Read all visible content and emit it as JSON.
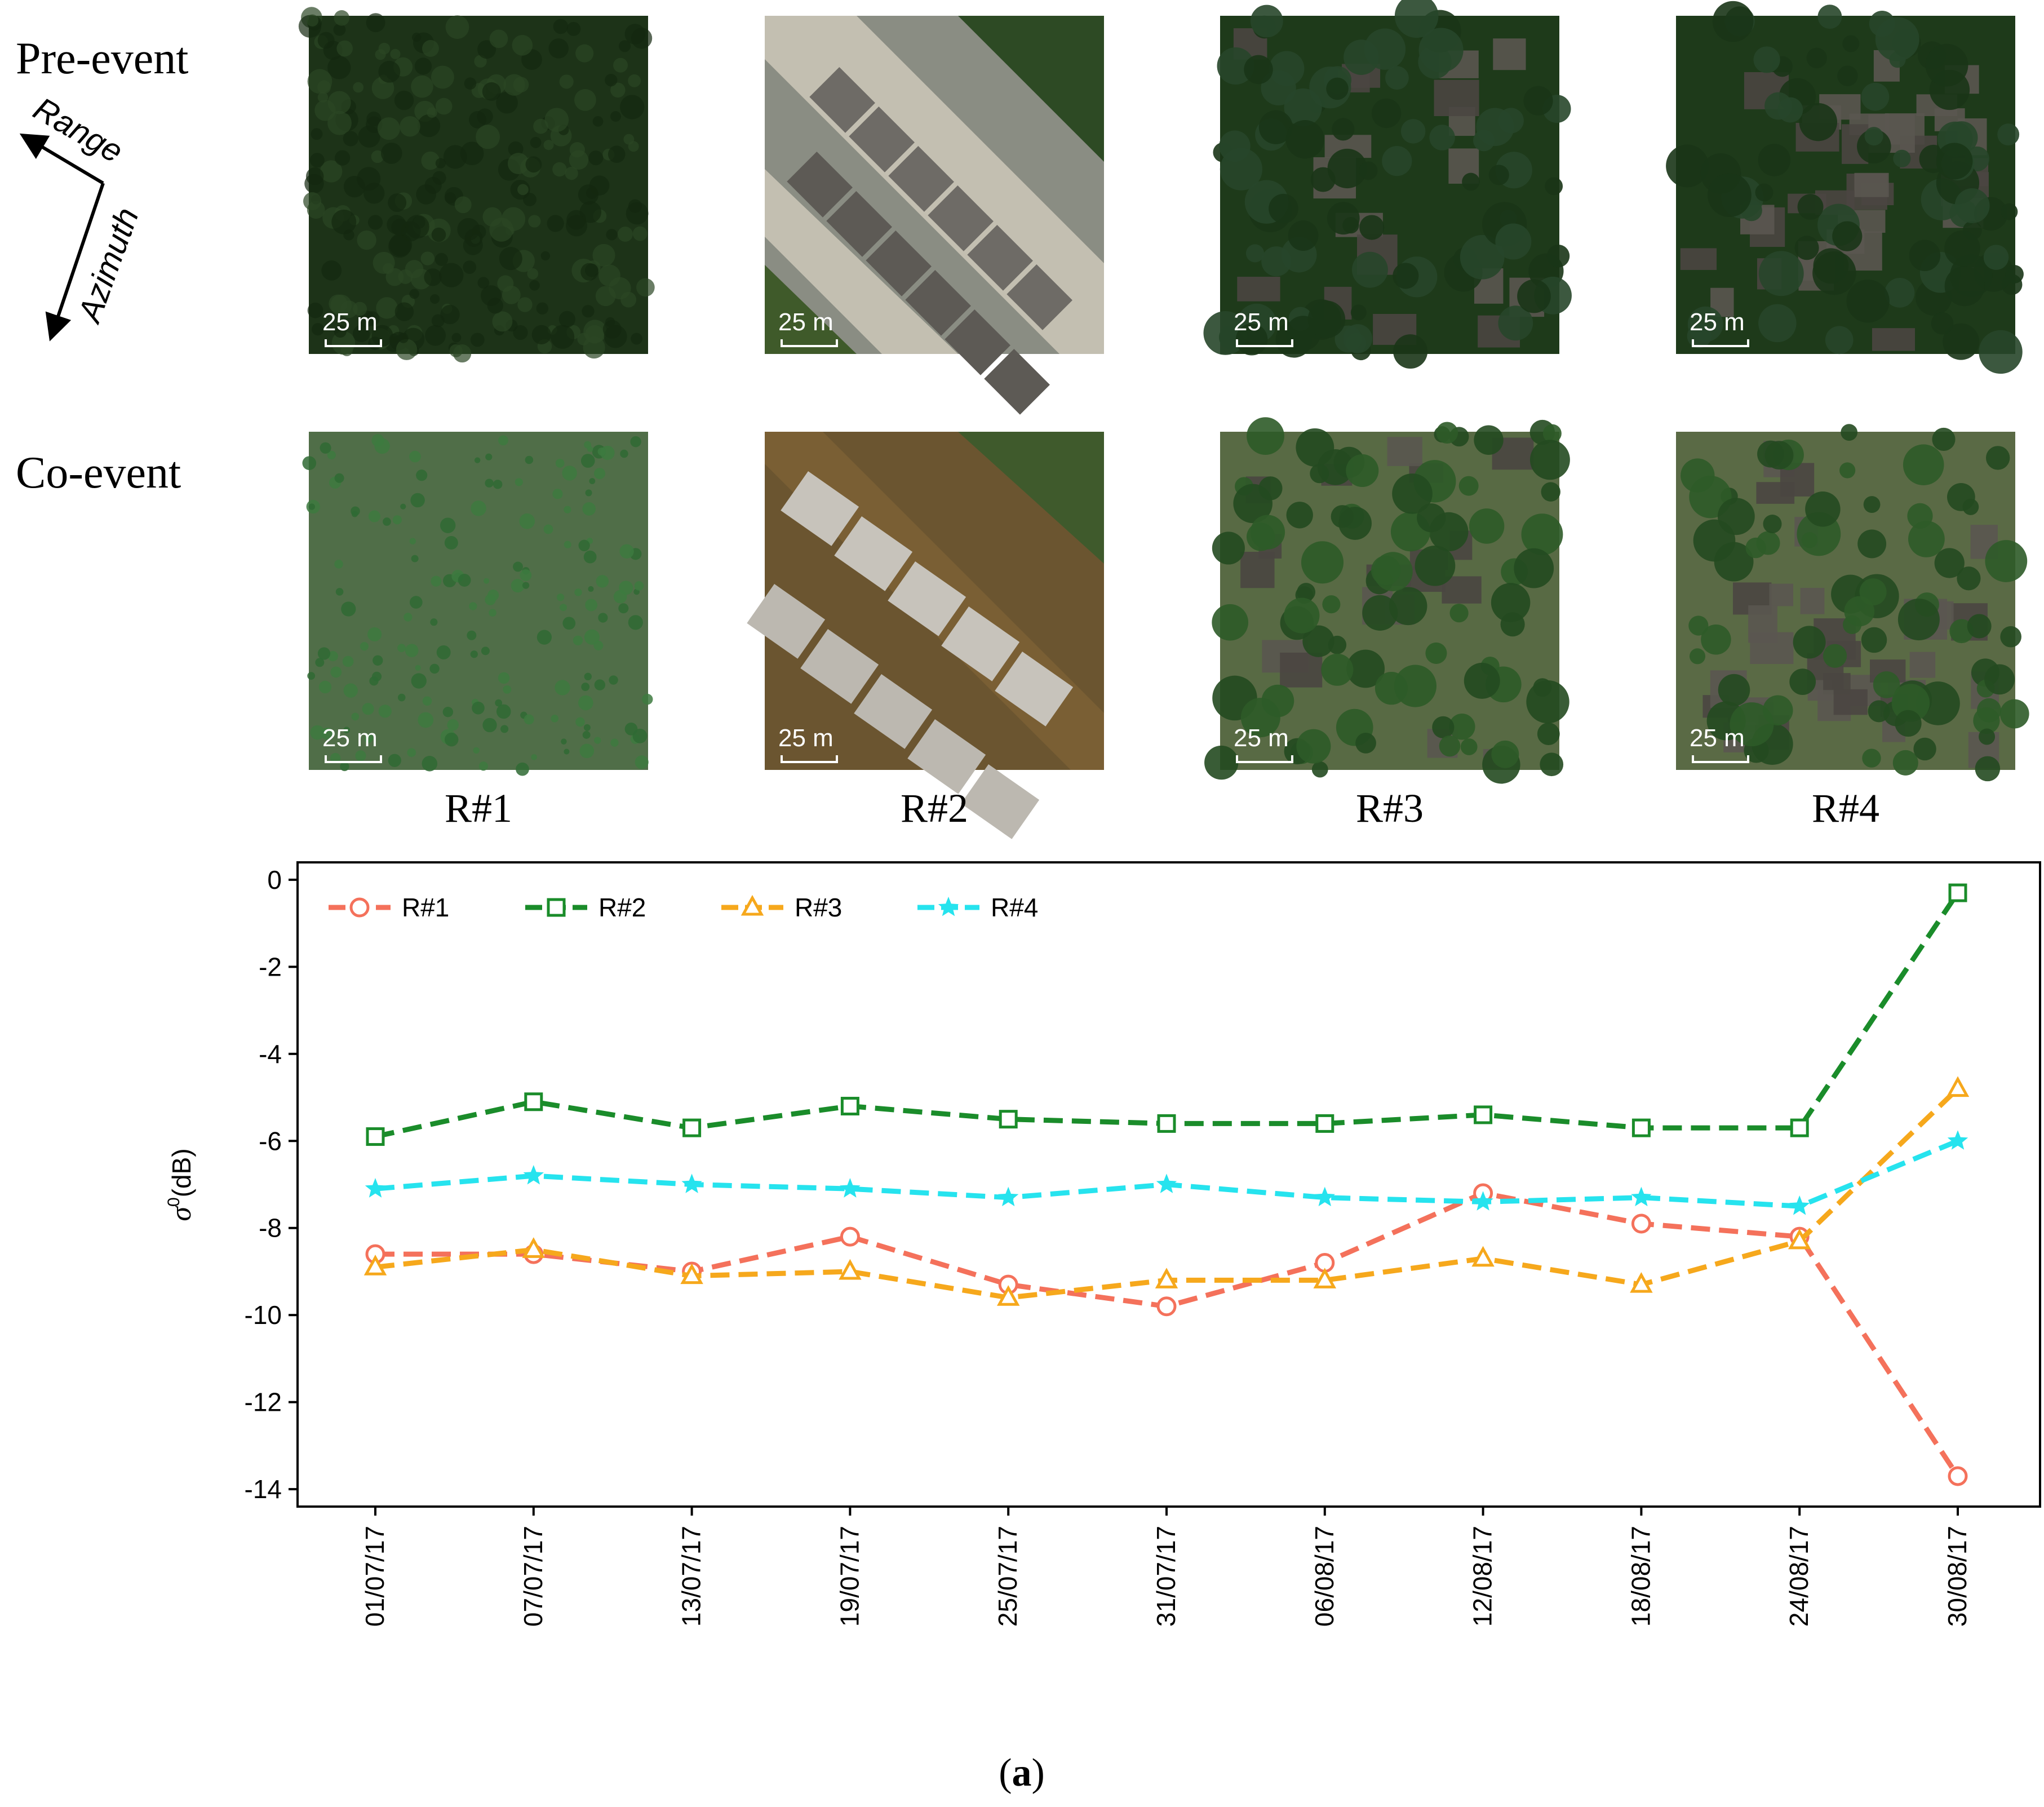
{
  "row_labels": {
    "pre": "Pre-event",
    "co": "Co-event"
  },
  "orientation": {
    "range": "Range",
    "azimuth": "Azimuth"
  },
  "scale_label": "25 m",
  "regions": [
    "R#1",
    "R#2",
    "R#3",
    "R#4"
  ],
  "caption": {
    "open": "(",
    "letter": "a",
    "close": ")"
  },
  "colors": {
    "r1": "#f4715b",
    "r2": "#1a8c2a",
    "r3": "#f6a81c",
    "r4": "#26e3ee",
    "pre_forest": "#1d3318",
    "co_forest": "#506e48",
    "water": "#6b5530",
    "roof": "#6e6b66",
    "concrete": "#c9c4b6",
    "tree": "#1e3a1a",
    "tree_co": "#2e5b28"
  },
  "chart_data": {
    "type": "line",
    "title": "",
    "xlabel": "",
    "ylabel": "σ⁰(dB)",
    "ylabel_main": "σ",
    "ylabel_sup": "0",
    "ylabel_unit": "(dB)",
    "ylim": [
      -14.4,
      0.4
    ],
    "yticks": [
      0,
      -2,
      -4,
      -6,
      -8,
      -10,
      -12,
      -14
    ],
    "ytick_labels": [
      "0",
      "-2",
      "-4",
      "-6",
      "-8",
      "-10",
      "-12",
      "-14"
    ],
    "categories": [
      "01/07/17",
      "07/07/17",
      "13/07/17",
      "19/07/17",
      "25/07/17",
      "31/07/17",
      "06/08/17",
      "12/08/17",
      "18/08/17",
      "24/08/17",
      "30/08/17"
    ],
    "legend_position": "top-left",
    "series": [
      {
        "name": "R#1",
        "marker": "circle",
        "color": "#f4715b",
        "values": [
          -8.6,
          -8.6,
          -9.0,
          -8.2,
          -9.3,
          -9.8,
          -8.8,
          -7.2,
          -7.9,
          -8.2,
          -13.7
        ]
      },
      {
        "name": "R#2",
        "marker": "square",
        "color": "#1a8c2a",
        "values": [
          -5.9,
          -5.1,
          -5.7,
          -5.2,
          -5.5,
          -5.6,
          -5.6,
          -5.4,
          -5.7,
          -5.7,
          -0.3
        ]
      },
      {
        "name": "R#3",
        "marker": "triangle",
        "color": "#f6a81c",
        "values": [
          -8.9,
          -8.5,
          -9.1,
          -9.0,
          -9.6,
          -9.2,
          -9.2,
          -8.7,
          -9.3,
          -8.3,
          -4.8
        ]
      },
      {
        "name": "R#4",
        "marker": "star",
        "color": "#26e3ee",
        "values": [
          -7.1,
          -6.8,
          -7.0,
          -7.1,
          -7.3,
          -7.0,
          -7.3,
          -7.4,
          -7.3,
          -7.5,
          -6.0
        ]
      }
    ]
  }
}
